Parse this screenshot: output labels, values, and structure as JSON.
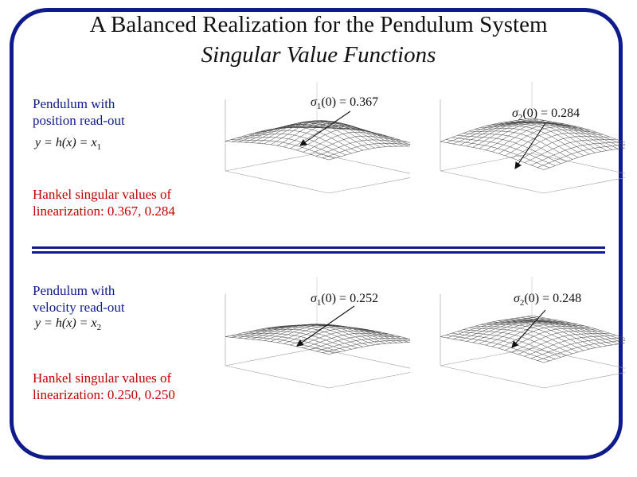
{
  "slide": {
    "title": "A Balanced Realization for the Pendulum System",
    "subtitle": "Singular Value Functions",
    "accent_color": "#0f1a8c",
    "highlight_color": "#c00000"
  },
  "sections": [
    {
      "description_line1": "Pendulum with",
      "description_line2": "position read-out",
      "output_formula": {
        "lhs": "y = h(x) = x",
        "subscript": "1"
      },
      "hankel_line1": "Hankel singular values of",
      "hankel_line2": "linearization: 0.367, 0.284",
      "plots": [
        {
          "sigma_symbol": "σ",
          "sigma_index": "1",
          "sigma_eq": "(0) = 0.367"
        },
        {
          "sigma_symbol": "σ",
          "sigma_index": "2",
          "sigma_eq": "(0) = 0.284"
        }
      ]
    },
    {
      "description_line1": "Pendulum with",
      "description_line2": "velocity read-out",
      "output_formula": {
        "lhs": "y = h(x) = x",
        "subscript": "2"
      },
      "hankel_line1": "Hankel singular values of",
      "hankel_line2": "linearization: 0.250, 0.250",
      "plots": [
        {
          "sigma_symbol": "σ",
          "sigma_index": "1",
          "sigma_eq": "(0) = 0.252"
        },
        {
          "sigma_symbol": "σ",
          "sigma_index": "2",
          "sigma_eq": "(0) = 0.248"
        }
      ]
    }
  ]
}
